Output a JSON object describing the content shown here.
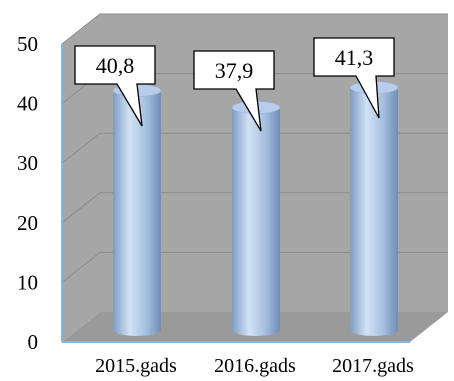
{
  "chart_data": {
    "type": "bar",
    "style": "3d-cylinder",
    "categories": [
      "2015.gads",
      "2016.gads",
      "2017.gads"
    ],
    "series": [
      {
        "values": [
          40.8,
          37.9,
          41.3
        ],
        "color": "#a9c4e8"
      }
    ],
    "data_labels": [
      "40,8",
      "37,9",
      "41,3"
    ],
    "yticks": [
      "0",
      "10",
      "20",
      "30",
      "40",
      "50"
    ],
    "ylim": [
      0,
      50
    ],
    "grid": true,
    "legend": "none",
    "colors": {
      "back_wall": "#a6a6a6",
      "floor": "#9a9a9a",
      "axis": "#88b4e0",
      "gridline": "#8c8c8c"
    }
  }
}
